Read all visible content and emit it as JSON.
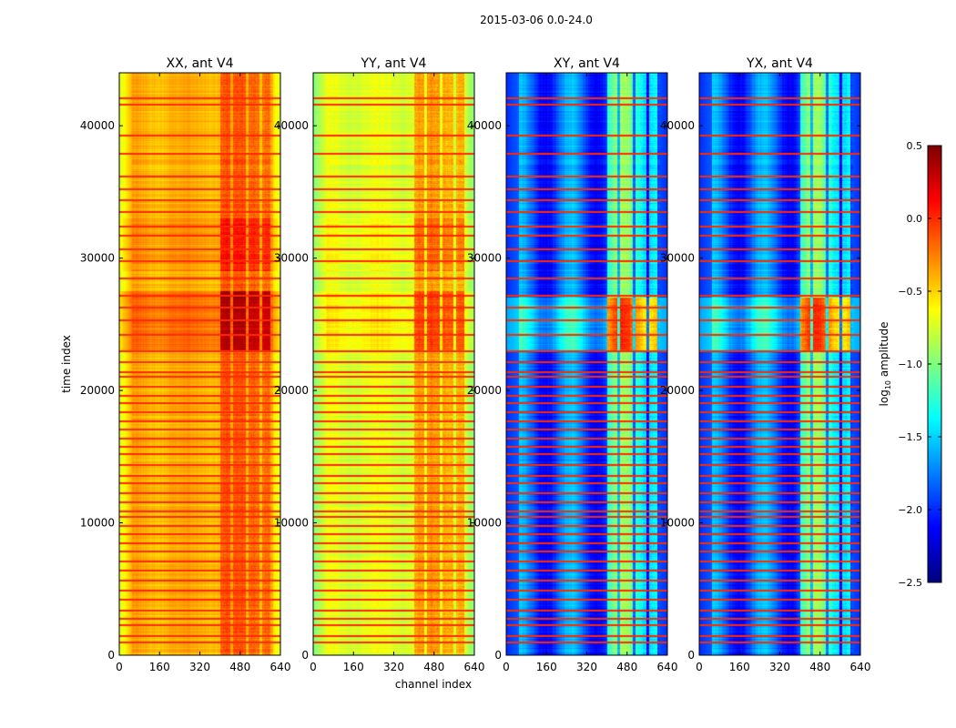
{
  "chart_data": {
    "type": "heatmap",
    "suptitle": "2015-03-06 0.0-24.0",
    "xlabel": "channel index",
    "ylabel": "time index",
    "xlim": [
      0,
      640
    ],
    "ylim": [
      0,
      44000
    ],
    "xticks": [
      "0",
      "160",
      "320",
      "480",
      "640"
    ],
    "yticks": [
      "0",
      "10000",
      "20000",
      "30000",
      "40000"
    ],
    "colormap": "jet",
    "colorbar": {
      "label_main": "log",
      "label_sub": "10",
      "label_rest": " amplitude",
      "range": [
        -2.5,
        0.5
      ],
      "ticks": [
        "0.5",
        "0.0",
        "−0.5",
        "−1.0",
        "−1.5",
        "−2.0",
        "−2.5"
      ],
      "tick_values": [
        0.5,
        0.0,
        -0.5,
        -1.0,
        -1.5,
        -2.0,
        -2.5
      ]
    },
    "rfi_channel_bands": [
      [
        400,
        440
      ],
      [
        450,
        500
      ],
      [
        510,
        555
      ],
      [
        565,
        600
      ]
    ],
    "flagged_times": [
      900,
      1400,
      2200,
      2700,
      3300,
      4100,
      4800,
      5600,
      6300,
      7000,
      7800,
      8400,
      9100,
      9700,
      10400,
      10800,
      11500,
      12200,
      12900,
      13500,
      14300,
      15100,
      15700,
      16300,
      17000,
      17600,
      18300,
      19000,
      19500,
      20200,
      21000,
      21300,
      22100,
      22900,
      24100,
      25200,
      26200,
      27100,
      28400,
      29700,
      30600,
      31600,
      32300,
      33400,
      34300,
      35100,
      36100,
      37800,
      39200,
      41500,
      42000
    ],
    "panels": [
      {
        "title": "XX, ant V4",
        "base": -0.4,
        "edge": -0.75,
        "rfi_boost": 0.25,
        "segments": [
          {
            "t": [
              23000,
              26500
            ],
            "delta": 0.45
          },
          {
            "t": [
              26500,
              27500
            ],
            "delta": 0.55
          },
          {
            "t": [
              29000,
              33000
            ],
            "delta": 0.2
          }
        ],
        "stripes": 0.05
      },
      {
        "title": "YY, ant V4",
        "base": -0.72,
        "edge": -1.0,
        "rfi_boost": 0.35,
        "segments": [
          {
            "t": [
              23000,
              26500
            ],
            "delta": 0.25
          },
          {
            "t": [
              26500,
              27500
            ],
            "delta": 0.3
          },
          {
            "t": [
              29000,
              33000
            ],
            "delta": 0.15
          }
        ],
        "stripes": 0.05
      },
      {
        "title": "XY, ant V4",
        "base": -1.85,
        "edge": -2.0,
        "rfi_boost": 0.65,
        "segments": [
          {
            "t": [
              23000,
              27000
            ],
            "delta": 0.9
          }
        ],
        "stripes": 0.3
      },
      {
        "title": "YX, ant V4",
        "base": -1.85,
        "edge": -2.0,
        "rfi_boost": 0.65,
        "segments": [
          {
            "t": [
              23000,
              27000
            ],
            "delta": 0.9
          }
        ],
        "stripes": 0.3
      }
    ]
  }
}
